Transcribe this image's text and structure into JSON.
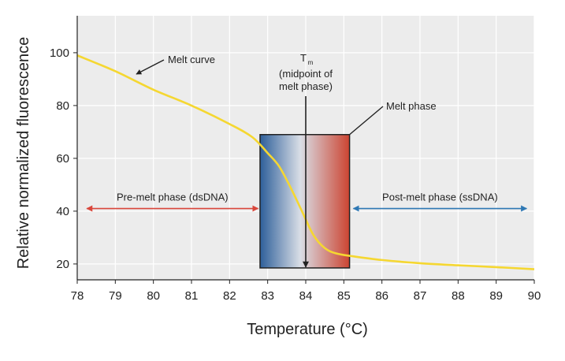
{
  "chart_data": {
    "type": "line",
    "xlabel": "Temperature (°C)",
    "ylabel": "Relative normalized fluorescence",
    "xlim": [
      78,
      90
    ],
    "ylim": [
      14,
      114
    ],
    "xticks": [
      78,
      79,
      80,
      81,
      82,
      83,
      84,
      85,
      86,
      87,
      88,
      89,
      90
    ],
    "yticks": [
      20,
      40,
      60,
      80,
      100
    ],
    "grid": true,
    "series": [
      {
        "name": "Melt curve",
        "color": "#f5d731",
        "x": [
          78,
          79,
          80,
          81,
          82,
          82.6,
          83,
          83.3,
          83.6,
          83.9,
          84.2,
          84.5,
          84.8,
          85.2,
          86,
          87,
          88,
          89,
          90
        ],
        "y": [
          99,
          93,
          86,
          80,
          73,
          68,
          62,
          57,
          49,
          40,
          31,
          26,
          24,
          23,
          21.5,
          20.3,
          19.5,
          18.8,
          18
        ]
      }
    ],
    "melt_phase_box": {
      "x0": 82.8,
      "x1": 85.15,
      "y0": 18.5,
      "y1": 69
    },
    "annotations": {
      "melt_curve": "Melt curve",
      "tm_symbol": "T",
      "tm_subscript": "m",
      "tm_line1": "(midpoint of",
      "tm_line2": "melt phase)",
      "melt_phase": "Melt phase",
      "pre_melt": "Pre-melt phase (dsDNA)",
      "post_melt": "Post-melt phase (ssDNA)"
    },
    "colors": {
      "curve": "#f5d731",
      "pre_arrow": "#d9463b",
      "post_arrow": "#2f78b4",
      "box_left": "#2e5f9a",
      "box_mid": "#d9dee6",
      "box_right": "#cc4431",
      "plot_bg": "#ececec",
      "grid": "#ffffff"
    }
  }
}
